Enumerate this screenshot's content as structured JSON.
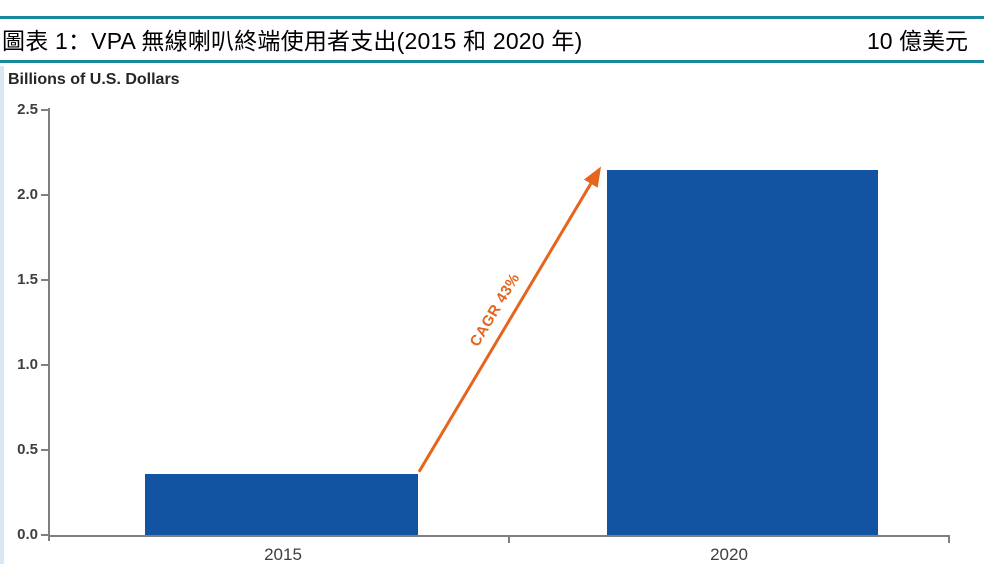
{
  "figure": {
    "title": "圖表 1：VPA 無線喇叭終端使用者支出(2015 和 2020 年)",
    "unit_label": "10 億美元",
    "accent_color": "#1A889C"
  },
  "chart_data": {
    "type": "bar",
    "title": "Billions of U.S. Dollars",
    "categories": [
      "2015",
      "2020"
    ],
    "values": [
      0.36,
      2.15
    ],
    "ylabel": "Billions of U.S. Dollars",
    "ylim": [
      0,
      2.5
    ],
    "ytick_labels": [
      "0.0",
      "0.5",
      "1.0",
      "1.5",
      "2.0",
      "2.5"
    ],
    "annotation": "CAGR 43%",
    "grid": false,
    "legend": false,
    "colors": {
      "bar": "#1254A2",
      "arrow": "#E5651D",
      "axis": "#7F7F7F",
      "tick_text": "#3F3F3F"
    }
  }
}
